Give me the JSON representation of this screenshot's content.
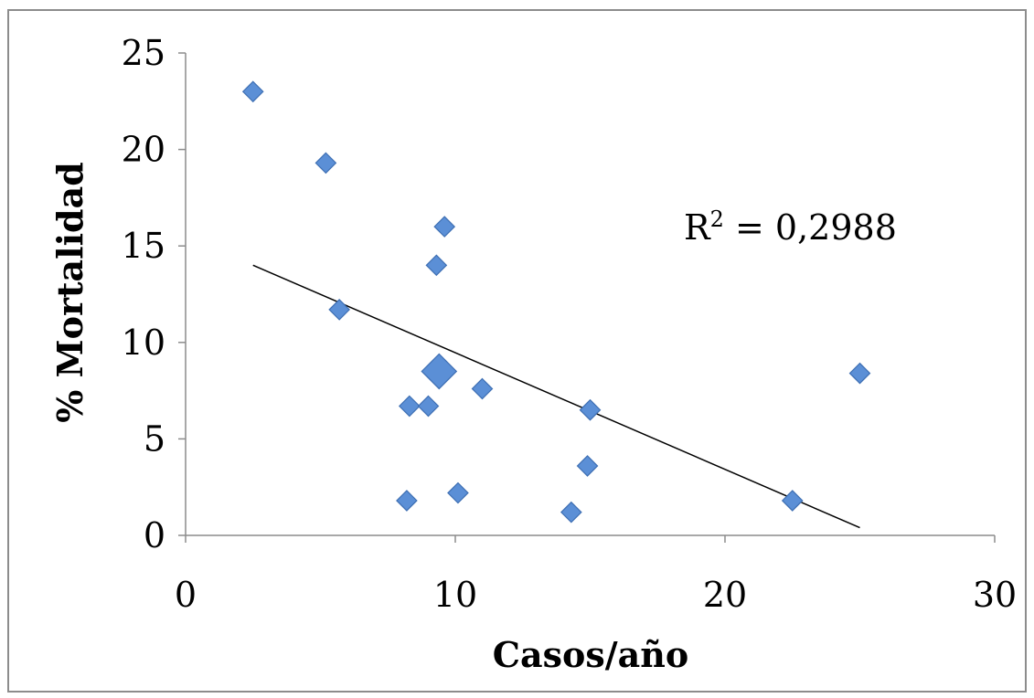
{
  "chart_data": {
    "type": "scatter",
    "title": "",
    "xlabel": "Casos/año",
    "ylabel": "% Mortalidad",
    "xlim": [
      0,
      30
    ],
    "ylim": [
      0,
      25
    ],
    "x_ticks": [
      "0",
      "10",
      "20",
      "30"
    ],
    "y_ticks": [
      "0",
      "5",
      "10",
      "15",
      "20",
      "25"
    ],
    "grid": false,
    "legend": "none",
    "marker": "diamond",
    "marker_color": "#5b8fd6",
    "points": [
      {
        "x": 2.5,
        "y": 23.0,
        "highlight": false
      },
      {
        "x": 5.2,
        "y": 19.3,
        "highlight": false
      },
      {
        "x": 5.7,
        "y": 11.7,
        "highlight": false
      },
      {
        "x": 9.6,
        "y": 16.0,
        "highlight": false
      },
      {
        "x": 9.3,
        "y": 14.0,
        "highlight": false
      },
      {
        "x": 9.4,
        "y": 8.5,
        "highlight": true
      },
      {
        "x": 8.3,
        "y": 6.7,
        "highlight": false
      },
      {
        "x": 9.0,
        "y": 6.7,
        "highlight": false
      },
      {
        "x": 11.0,
        "y": 7.6,
        "highlight": false
      },
      {
        "x": 15.0,
        "y": 6.5,
        "highlight": false
      },
      {
        "x": 14.9,
        "y": 3.6,
        "highlight": false
      },
      {
        "x": 8.2,
        "y": 1.8,
        "highlight": false
      },
      {
        "x": 10.1,
        "y": 2.2,
        "highlight": false
      },
      {
        "x": 14.3,
        "y": 1.2,
        "highlight": false
      },
      {
        "x": 22.5,
        "y": 1.8,
        "highlight": false
      },
      {
        "x": 25.0,
        "y": 8.4,
        "highlight": false
      }
    ],
    "trendline": {
      "x": [
        2.5,
        25.0
      ],
      "y": [
        14.0,
        0.4
      ]
    },
    "annotation": {
      "base": "R",
      "sup": "2",
      "text": " = 0,2988"
    }
  }
}
